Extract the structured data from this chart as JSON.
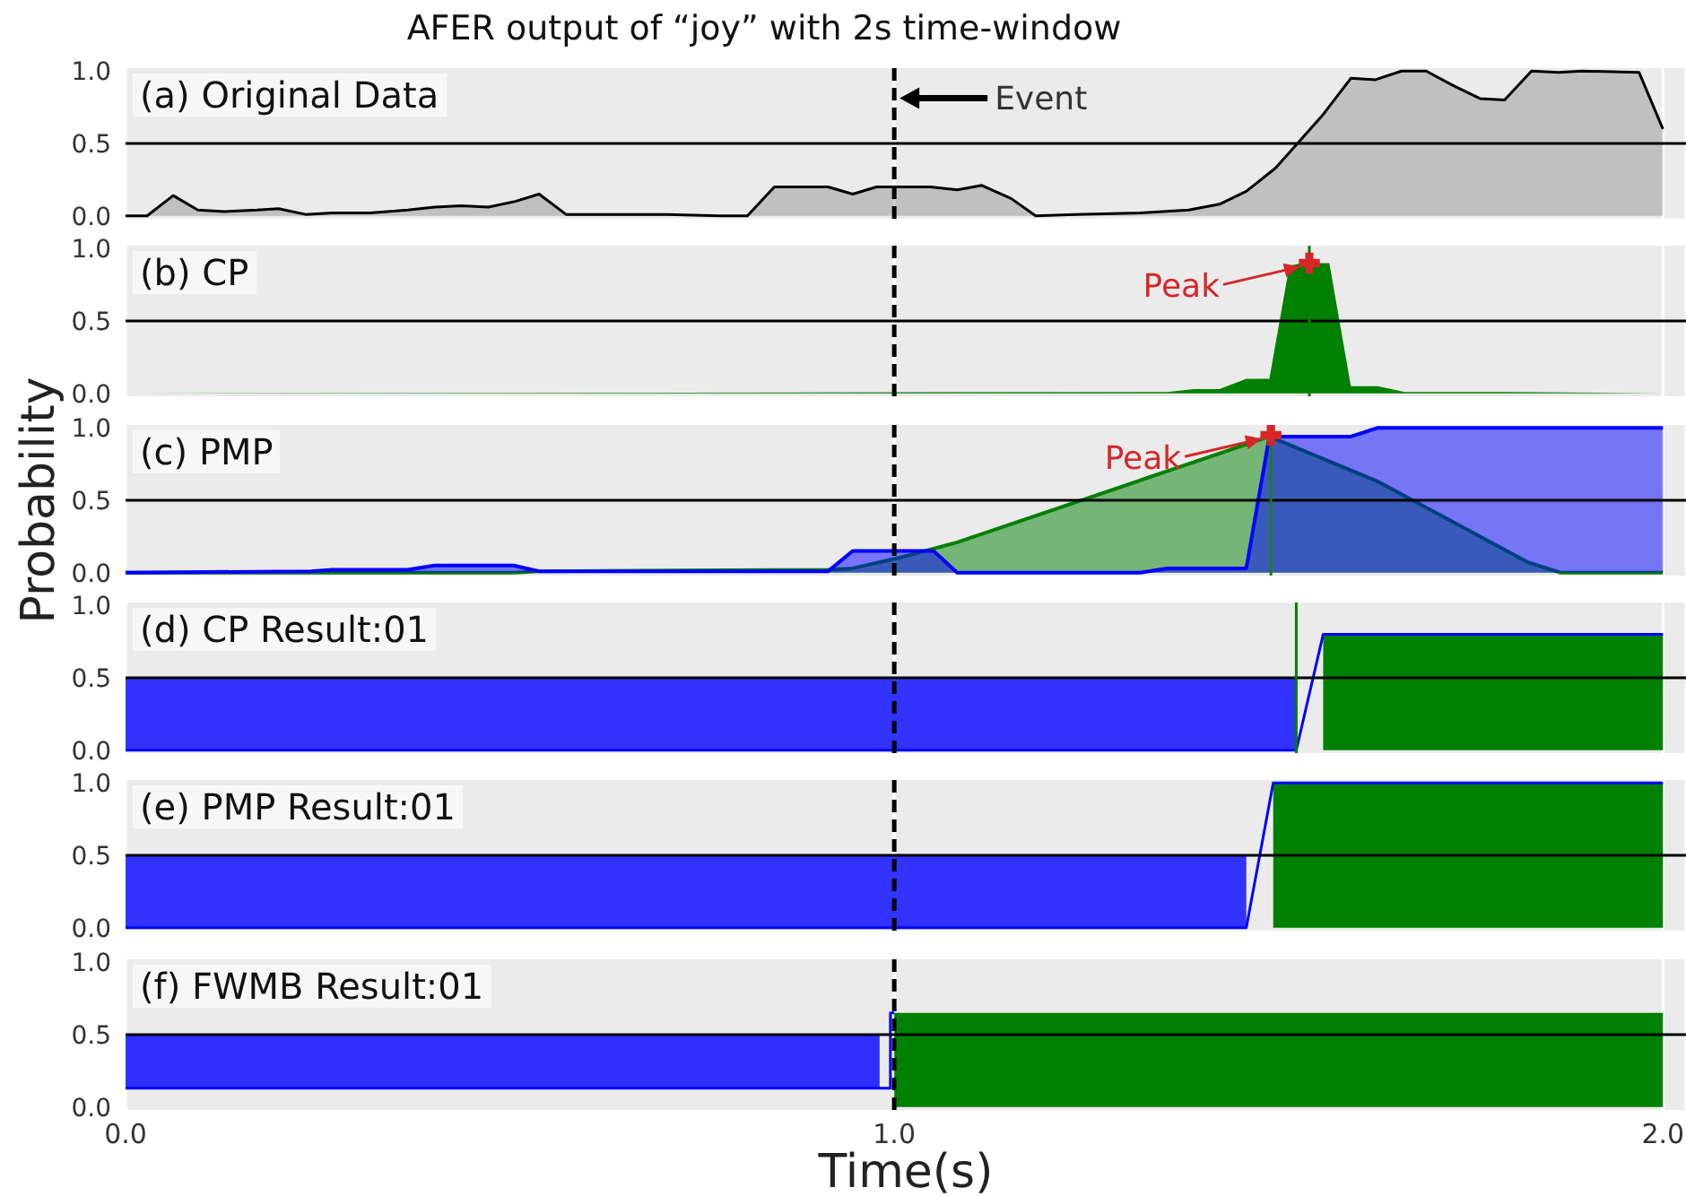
{
  "chart_data": [
    {
      "type": "area",
      "title": "AFER output of “joy” with 2s time-window",
      "subtitle": "(a) Original Data",
      "grid": "x",
      "xlim": [
        0,
        2.03
      ],
      "xticks": [
        0,
        1,
        2
      ],
      "ylim": [
        -0.02,
        1.02
      ],
      "yticks": [
        {
          "value": 0,
          "label": "0.0"
        },
        {
          "value": 0.5,
          "label": "0.5"
        },
        {
          "value": 1,
          "label": "1.0"
        }
      ],
      "tick_labels": "y",
      "series": [
        {
          "type": "area",
          "color": "#000000",
          "line_style": "solid",
          "x": [
            0,
            0.028,
            0.062,
            0.094,
            0.129,
            0.171,
            0.199,
            0.234,
            0.269,
            0.318,
            0.367,
            0.402,
            0.437,
            0.472,
            0.507,
            0.538,
            0.573,
            0.619,
            0.704,
            0.774,
            0.809,
            0.844,
            0.914,
            0.946,
            0.977,
            1.047,
            1.082,
            1.114,
            1.152,
            1.184,
            1.236,
            1.32,
            1.383,
            1.423,
            1.458,
            1.496,
            1.558,
            1.594,
            1.626,
            1.66,
            1.692,
            1.727,
            1.762,
            1.794,
            1.829,
            1.864,
            1.895,
            1.969,
            2.0
          ],
          "values": [
            0,
            0,
            0.14,
            0.04,
            0.03,
            0.04,
            0.05,
            0.01,
            0.02,
            0.02,
            0.04,
            0.06,
            0.07,
            0.06,
            0.1,
            0.15,
            0.01,
            0.01,
            0.01,
            0,
            0,
            0.2,
            0.2,
            0.15,
            0.2,
            0.2,
            0.18,
            0.21,
            0.12,
            0,
            0.01,
            0.02,
            0.04,
            0.08,
            0.17,
            0.33,
            0.7,
            0.95,
            0.94,
            1.0,
            1.0,
            0.9,
            0.81,
            0.8,
            1.0,
            0.99,
            1.0,
            0.99,
            0.6
          ]
        }
      ],
      "ref_lines": [
        {
          "axis": "y",
          "value": 0.5,
          "color": "#000000"
        },
        {
          "axis": "x",
          "value": 1.0,
          "color": "#000000",
          "line_style": "dashed"
        }
      ],
      "annotations": [
        "Event"
      ]
    },
    {
      "type": "area",
      "subtitle": "(b) CP",
      "grid": "x",
      "xlim": [
        0,
        2.03
      ],
      "xticks": [
        0,
        1,
        2
      ],
      "ylim": [
        -0.02,
        1.02
      ],
      "yticks": [
        {
          "value": 0,
          "label": "0.0"
        },
        {
          "value": 0.5,
          "label": "0.5"
        },
        {
          "value": 1,
          "label": "1.0"
        }
      ],
      "tick_labels": "y",
      "series": [
        {
          "type": "area",
          "color": "#008000",
          "x": [
            0,
            1.355,
            1.39,
            1.423,
            1.458,
            1.488,
            1.514,
            1.53,
            1.566,
            1.594,
            1.629,
            1.664,
            1.797,
            2.0
          ],
          "values": [
            0,
            0.01,
            0.03,
            0.03,
            0.1,
            0.1,
            0.88,
            0.9,
            0.9,
            0.05,
            0.05,
            0.01,
            0.01,
            0
          ]
        },
        {
          "type": "scatter",
          "color": "#d62728",
          "marker": "cross",
          "x": [
            1.54
          ],
          "values": [
            0.9
          ]
        }
      ],
      "ref_lines": [
        {
          "axis": "y",
          "value": 0.5,
          "color": "#000000"
        },
        {
          "axis": "x",
          "value": 1.0,
          "color": "#000000",
          "line_style": "dashed"
        },
        {
          "axis": "x",
          "value": 1.54,
          "color": "#008000"
        }
      ],
      "annotations": [
        {
          "text": "Peak",
          "x": 1.54,
          "y": 0.9
        }
      ]
    },
    {
      "type": "area",
      "subtitle": "(c) PMP",
      "ylabel": "Probability",
      "grid": "x",
      "xlim": [
        0,
        2.03
      ],
      "xticks": [
        0,
        1,
        2
      ],
      "ylim": [
        -0.02,
        1.02
      ],
      "yticks": [
        {
          "value": 0,
          "label": "0.0"
        },
        {
          "value": 0.5,
          "label": "0.5"
        },
        {
          "value": 1,
          "label": "1.0"
        }
      ],
      "tick_labels": "y",
      "series": [
        {
          "type": "area",
          "color": "#008000",
          "line_style": "solid",
          "x": [
            0,
            0.507,
            0.535,
            0.914,
            0.946,
            1.012,
            1.082,
            1.488,
            1.629,
            1.825,
            1.867,
            2.0
          ],
          "values": [
            0,
            0,
            0.01,
            0.02,
            0.03,
            0.11,
            0.21,
            0.94,
            0.63,
            0.07,
            0,
            0
          ]
        },
        {
          "type": "area",
          "color": "#0000ff",
          "line_style": "solid",
          "x": [
            0,
            0.241,
            0.269,
            0.367,
            0.402,
            0.505,
            0.538,
            0.914,
            0.946,
            1.051,
            1.082,
            1.32,
            1.355,
            1.458,
            1.488,
            1.594,
            1.629,
            2.0
          ],
          "values": [
            0,
            0.01,
            0.02,
            0.02,
            0.05,
            0.05,
            0.01,
            0.01,
            0.15,
            0.15,
            0,
            0,
            0.03,
            0.03,
            0.94,
            0.94,
            1.0,
            1.0
          ]
        },
        {
          "type": "scatter",
          "color": "#d62728",
          "marker": "cross",
          "x": [
            1.49
          ],
          "values": [
            0.95
          ]
        }
      ],
      "ref_lines": [
        {
          "axis": "y",
          "value": 0.5,
          "color": "#000000"
        },
        {
          "axis": "x",
          "value": 1.0,
          "color": "#000000",
          "line_style": "dashed"
        },
        {
          "axis": "x",
          "value": 1.49,
          "color": "#1e7a1e"
        }
      ],
      "annotations": [
        {
          "text": "Peak",
          "x": 1.49,
          "y": 0.95
        }
      ]
    },
    {
      "type": "area",
      "subtitle": "(d) CP Result:01",
      "grid": "x",
      "xlim": [
        0,
        2.03
      ],
      "xticks": [
        0,
        1,
        2
      ],
      "ylim": [
        -0.02,
        1.02
      ],
      "yticks": [
        {
          "value": 0,
          "label": "0.0"
        },
        {
          "value": 0.5,
          "label": "0.5"
        },
        {
          "value": 1,
          "label": "1.0"
        }
      ],
      "tick_labels": "y",
      "series": [
        {
          "type": "area",
          "color": "#3333ff",
          "x": [
            0,
            1.523
          ],
          "values": [
            0.5,
            0.5
          ]
        },
        {
          "type": "area",
          "color": "#008000",
          "x": [
            1.558,
            2.0
          ],
          "values": [
            0.8,
            0.8
          ]
        },
        {
          "type": "line",
          "color": "#0000ff",
          "x": [
            0,
            1.523,
            1.558,
            2.0
          ],
          "values": [
            0,
            0,
            0.8,
            0.8
          ]
        }
      ],
      "ref_lines": [
        {
          "axis": "y",
          "value": 0.5,
          "color": "#000000"
        },
        {
          "axis": "x",
          "value": 1.0,
          "color": "#000000",
          "line_style": "dashed"
        },
        {
          "axis": "x",
          "value": 1.523,
          "color": "#008000"
        }
      ]
    },
    {
      "type": "area",
      "subtitle": "(e) PMP Result:01",
      "grid": "x",
      "xlim": [
        0,
        2.03
      ],
      "xticks": [
        0,
        1,
        2
      ],
      "ylim": [
        -0.02,
        1.02
      ],
      "yticks": [
        {
          "value": 0,
          "label": "0.0"
        },
        {
          "value": 0.5,
          "label": "0.5"
        },
        {
          "value": 1,
          "label": "1.0"
        }
      ],
      "tick_labels": "y",
      "series": [
        {
          "type": "area",
          "color": "#3333ff",
          "x": [
            0,
            1.458
          ],
          "values": [
            0.5,
            0.5
          ]
        },
        {
          "type": "area",
          "color": "#008000",
          "x": [
            1.493,
            2.0
          ],
          "values": [
            1.0,
            1.0
          ]
        },
        {
          "type": "line",
          "color": "#0000ff",
          "x": [
            0,
            1.458,
            1.493,
            2.0
          ],
          "values": [
            0,
            0,
            1.0,
            1.0
          ]
        }
      ],
      "ref_lines": [
        {
          "axis": "y",
          "value": 0.5,
          "color": "#000000"
        },
        {
          "axis": "x",
          "value": 1.0,
          "color": "#000000",
          "line_style": "dashed"
        }
      ]
    },
    {
      "type": "area",
      "subtitle": "(f) FWMB Result:01",
      "xlabel": "Time(s)",
      "grid": "x",
      "xlim": [
        0,
        2.03
      ],
      "xticks": [
        {
          "value": 0,
          "label": "0.0"
        },
        {
          "value": 1,
          "label": "1.0"
        },
        {
          "value": 2,
          "label": "2.0"
        }
      ],
      "ylim": [
        -0.02,
        1.02
      ],
      "yticks": [
        {
          "value": 0,
          "label": "0.0"
        },
        {
          "value": 0.5,
          "label": "0.5"
        },
        {
          "value": 1,
          "label": "1.0"
        }
      ],
      "series": [
        {
          "type": "area",
          "color": "#008000",
          "x": [
            1.0,
            2.0
          ],
          "values": [
            0.65,
            0.65
          ]
        },
        {
          "type": "line",
          "color": "#0000ff",
          "x": [
            0,
            0.981,
            0.995,
            0.995,
            1.0
          ],
          "values": [
            0.13,
            0.13,
            0.13,
            0.65,
            0.65
          ],
          "lower": [
            0.13,
            0.13,
            null,
            null,
            null
          ],
          "upper": [
            0.5,
            0.5,
            null,
            null,
            null
          ]
        }
      ],
      "ref_lines": [
        {
          "axis": "y",
          "value": 0.5,
          "color": "#000000"
        },
        {
          "axis": "x",
          "value": 1.0,
          "color": "#000000",
          "line_style": "dashed"
        }
      ]
    }
  ]
}
